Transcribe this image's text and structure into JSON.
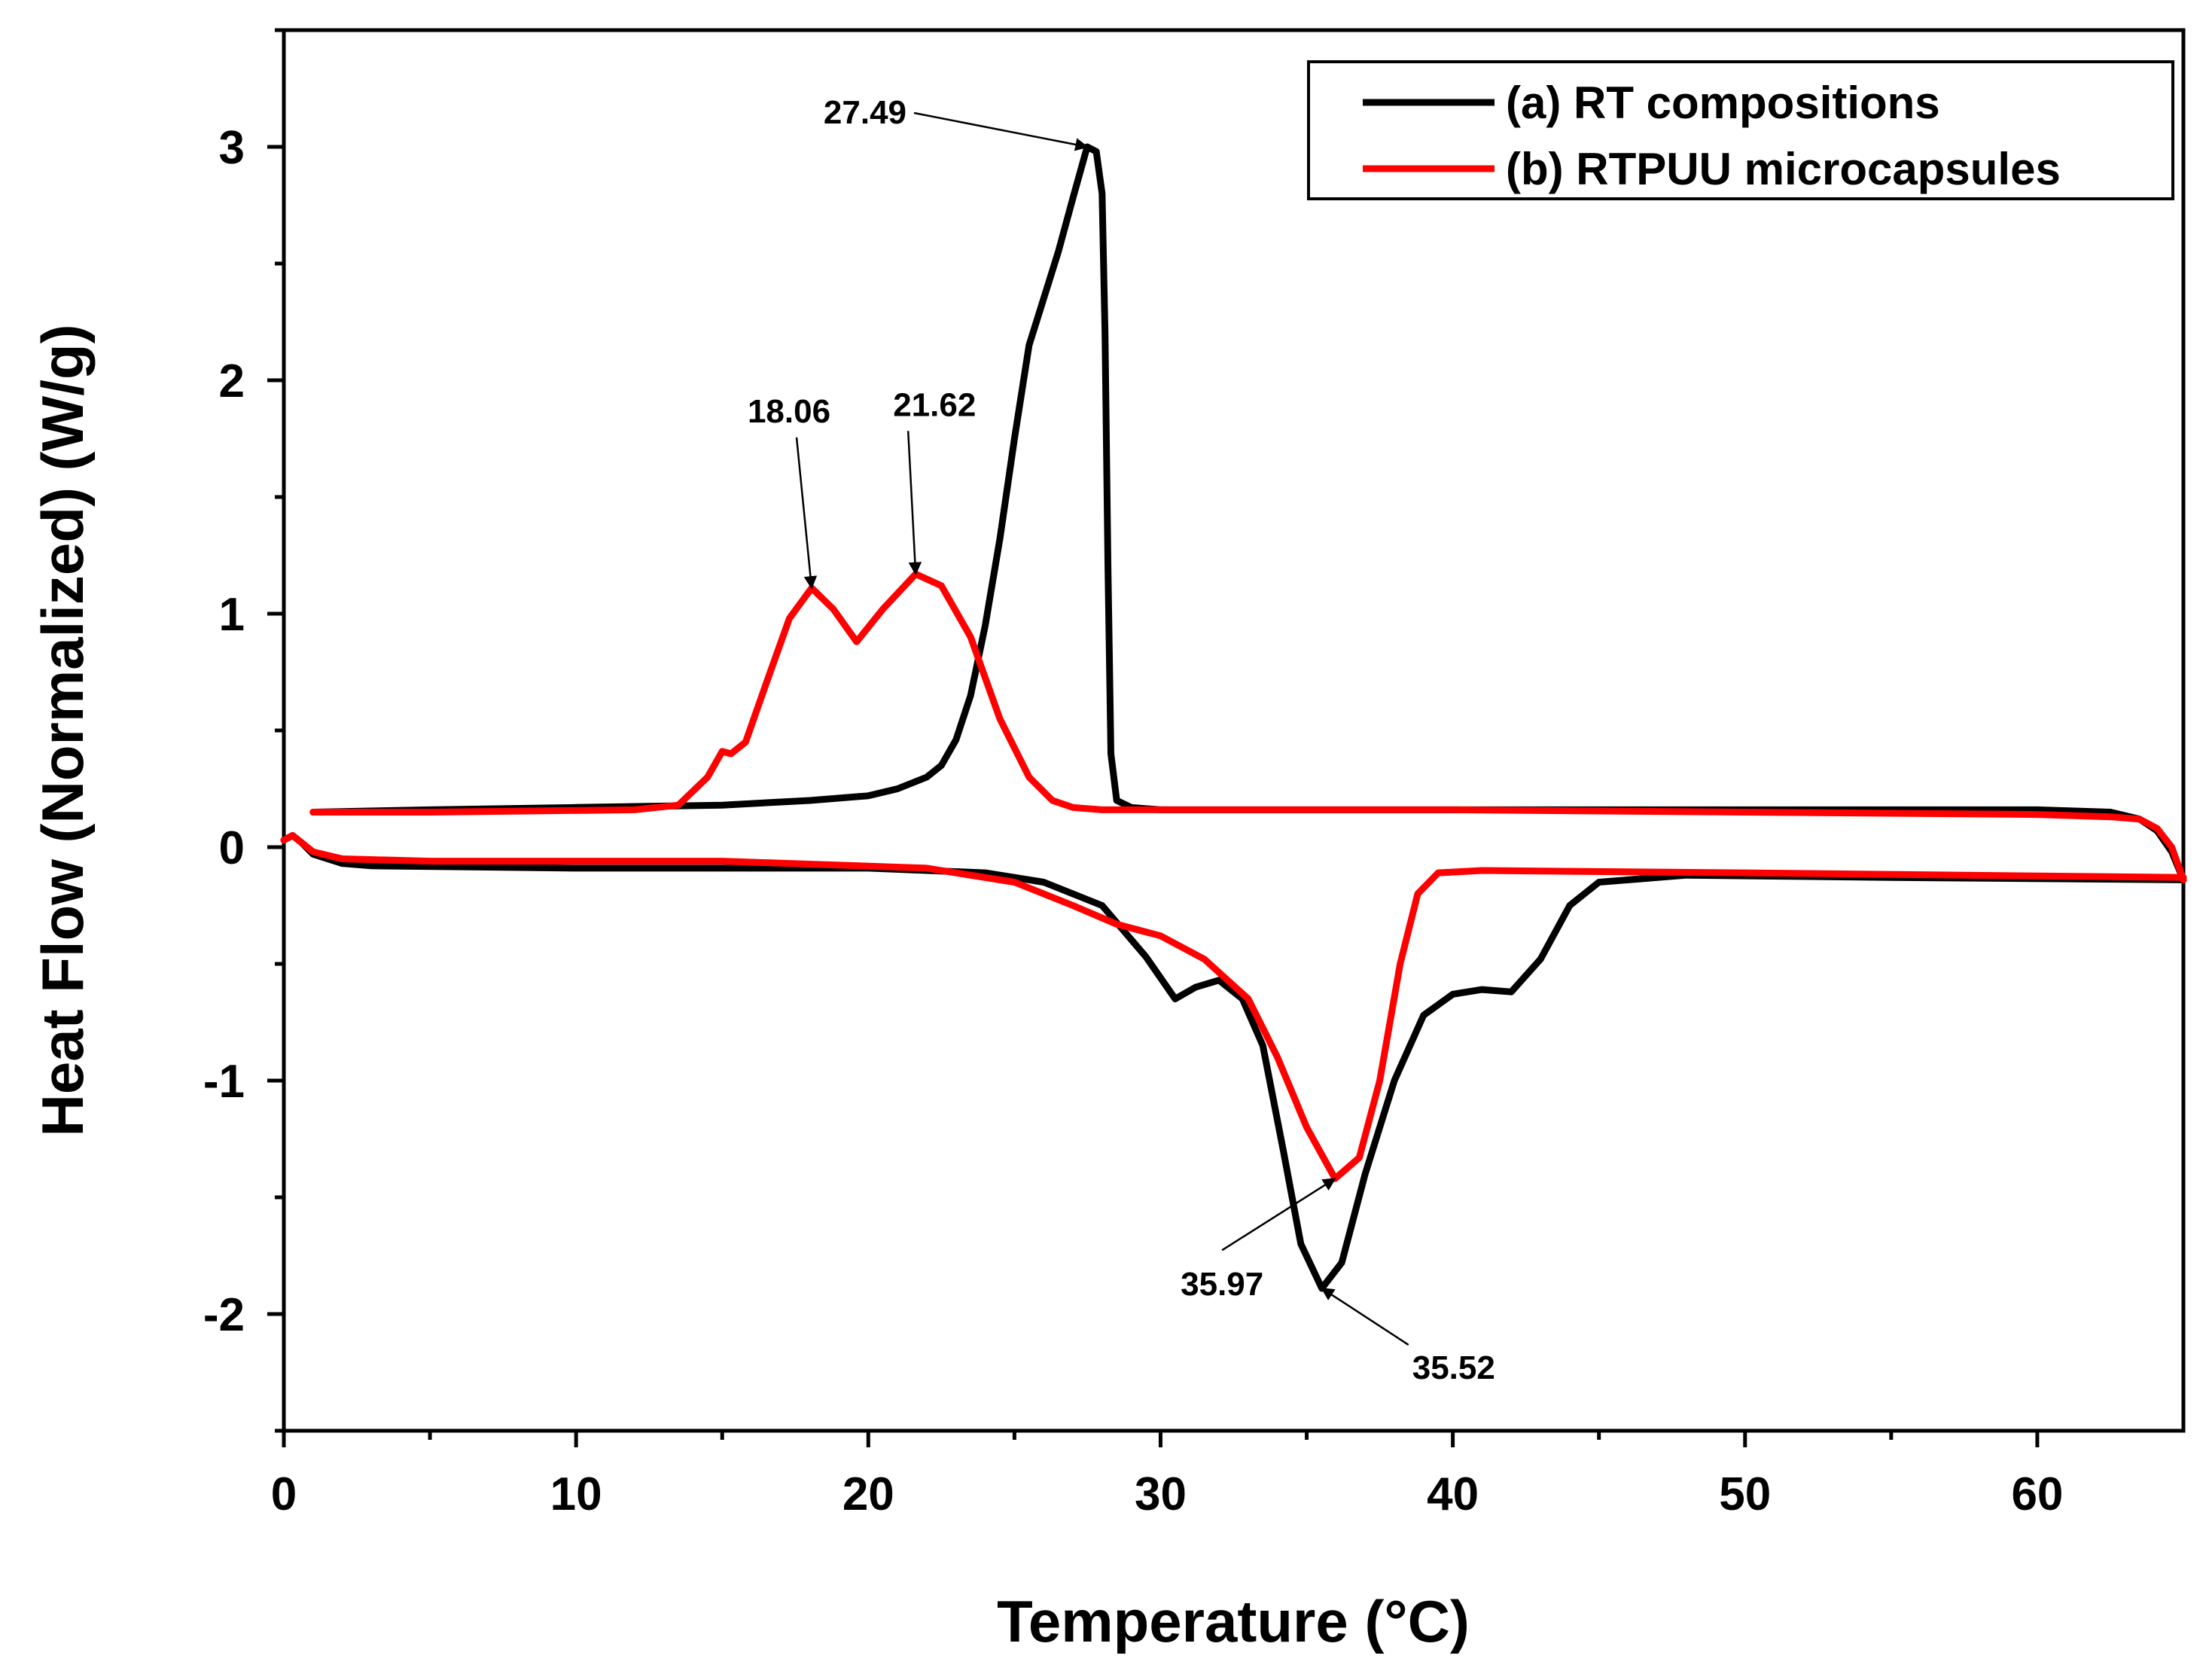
{
  "chart_data": {
    "type": "line",
    "title": "",
    "xlabel": "Temperature (°C)",
    "ylabel": "Heat Flow (Normalized) (W/g)",
    "xlim": [
      0,
      65
    ],
    "ylim": [
      -2.5,
      3.5
    ],
    "xticks": [
      0,
      10,
      20,
      30,
      40,
      50,
      60
    ],
    "xtick_labels": [
      "0",
      "10",
      "20",
      "30",
      "40",
      "50",
      "60"
    ],
    "yticks": [
      -2,
      -1,
      0,
      1,
      2,
      3
    ],
    "ytick_labels": [
      "-2",
      "-1",
      "0",
      "1",
      "2",
      "3"
    ],
    "grid": false,
    "legend_position": "top-right",
    "series": [
      {
        "name": "(a) RT compositions",
        "color": "#000000",
        "segments": [
          [
            [
              65,
              -0.14
            ],
            [
              64.6,
              -0.02
            ],
            [
              64.1,
              0.07
            ],
            [
              63.5,
              0.12
            ],
            [
              62.5,
              0.15
            ],
            [
              60,
              0.16
            ],
            [
              50,
              0.16
            ],
            [
              40,
              0.16
            ],
            [
              32,
              0.16
            ],
            [
              30,
              0.16
            ],
            [
              29,
              0.17
            ],
            [
              28.5,
              0.2
            ],
            [
              28.3,
              0.4
            ],
            [
              28.2,
              1.2
            ],
            [
              28.1,
              2.2
            ],
            [
              28.0,
              2.8
            ],
            [
              27.8,
              2.98
            ],
            [
              27.49,
              3.0
            ],
            [
              27.0,
              2.78
            ],
            [
              26.5,
              2.55
            ],
            [
              26.0,
              2.35
            ],
            [
              25.5,
              2.15
            ],
            [
              25.0,
              1.75
            ],
            [
              24.5,
              1.32
            ],
            [
              24.0,
              0.95
            ],
            [
              23.5,
              0.65
            ],
            [
              23.0,
              0.46
            ],
            [
              22.5,
              0.35
            ],
            [
              22.0,
              0.3
            ],
            [
              21.0,
              0.25
            ],
            [
              20.0,
              0.22
            ],
            [
              18.0,
              0.2
            ],
            [
              15.0,
              0.18
            ],
            [
              10.0,
              0.17
            ],
            [
              5.0,
              0.16
            ],
            [
              1.0,
              0.15
            ]
          ],
          [
            [
              0,
              0.03
            ],
            [
              0.3,
              0.05
            ],
            [
              0.6,
              0.02
            ],
            [
              1.0,
              -0.03
            ],
            [
              2.0,
              -0.07
            ],
            [
              3.0,
              -0.08
            ],
            [
              10.0,
              -0.09
            ],
            [
              20.0,
              -0.09
            ],
            [
              24.0,
              -0.11
            ],
            [
              26.0,
              -0.15
            ],
            [
              28.0,
              -0.25
            ],
            [
              29.5,
              -0.47
            ],
            [
              30.5,
              -0.65
            ],
            [
              31.2,
              -0.6
            ],
            [
              32.0,
              -0.57
            ],
            [
              32.8,
              -0.65
            ],
            [
              33.5,
              -0.85
            ],
            [
              34.2,
              -1.3
            ],
            [
              34.8,
              -1.7
            ],
            [
              35.52,
              -1.89
            ],
            [
              36.2,
              -1.78
            ],
            [
              37.0,
              -1.4
            ],
            [
              38.0,
              -1.0
            ],
            [
              39.0,
              -0.72
            ],
            [
              40.0,
              -0.63
            ],
            [
              41.0,
              -0.61
            ],
            [
              42.0,
              -0.62
            ],
            [
              43.0,
              -0.48
            ],
            [
              44.0,
              -0.25
            ],
            [
              45.0,
              -0.15
            ],
            [
              48.0,
              -0.12
            ],
            [
              55.0,
              -0.13
            ],
            [
              65.0,
              -0.14
            ]
          ]
        ]
      },
      {
        "name": "(b) RTPUU microcapsules",
        "color": "#ff0000",
        "segments": [
          [
            [
              65,
              -0.14
            ],
            [
              64.6,
              0.0
            ],
            [
              64.1,
              0.08
            ],
            [
              63.5,
              0.12
            ],
            [
              62.5,
              0.13
            ],
            [
              60,
              0.14
            ],
            [
              50,
              0.15
            ],
            [
              40,
              0.16
            ],
            [
              30,
              0.16
            ],
            [
              28,
              0.16
            ],
            [
              27.0,
              0.17
            ],
            [
              26.3,
              0.2
            ],
            [
              25.5,
              0.3
            ],
            [
              24.5,
              0.55
            ],
            [
              23.5,
              0.9
            ],
            [
              22.5,
              1.12
            ],
            [
              21.62,
              1.17
            ],
            [
              20.5,
              1.02
            ],
            [
              19.6,
              0.88
            ],
            [
              18.8,
              1.02
            ],
            [
              18.06,
              1.11
            ],
            [
              17.3,
              0.98
            ],
            [
              16.5,
              0.7
            ],
            [
              15.8,
              0.45
            ],
            [
              15.3,
              0.4
            ],
            [
              15.0,
              0.41
            ],
            [
              14.5,
              0.3
            ],
            [
              13.5,
              0.18
            ],
            [
              12.0,
              0.16
            ],
            [
              5.0,
              0.15
            ],
            [
              1.0,
              0.15
            ]
          ],
          [
            [
              0,
              0.03
            ],
            [
              0.3,
              0.05
            ],
            [
              0.6,
              0.02
            ],
            [
              1.0,
              -0.02
            ],
            [
              2.0,
              -0.05
            ],
            [
              5.0,
              -0.06
            ],
            [
              15.0,
              -0.06
            ],
            [
              22.0,
              -0.09
            ],
            [
              25.0,
              -0.15
            ],
            [
              27.0,
              -0.25
            ],
            [
              28.5,
              -0.33
            ],
            [
              30.0,
              -0.38
            ],
            [
              31.5,
              -0.48
            ],
            [
              33.0,
              -0.65
            ],
            [
              34.0,
              -0.9
            ],
            [
              35.0,
              -1.2
            ],
            [
              35.97,
              -1.42
            ],
            [
              36.8,
              -1.33
            ],
            [
              37.5,
              -1.0
            ],
            [
              38.2,
              -0.5
            ],
            [
              38.8,
              -0.2
            ],
            [
              39.5,
              -0.11
            ],
            [
              41.0,
              -0.1
            ],
            [
              50.0,
              -0.11
            ],
            [
              65.0,
              -0.13
            ]
          ]
        ]
      }
    ],
    "annotations": [
      {
        "text": "27.49",
        "x": 27.49,
        "y": 3.0,
        "target_series": "(a) RT compositions"
      },
      {
        "text": "18.06",
        "x": 18.06,
        "y": 1.11,
        "target_series": "(b) RTPUU microcapsules"
      },
      {
        "text": "21.62",
        "x": 21.62,
        "y": 1.17,
        "target_series": "(b) RTPUU microcapsules"
      },
      {
        "text": "35.97",
        "x": 35.97,
        "y": -1.42,
        "target_series": "(b) RTPUU microcapsules"
      },
      {
        "text": "35.52",
        "x": 35.52,
        "y": -1.89,
        "target_series": "(a) RT compositions"
      }
    ]
  }
}
